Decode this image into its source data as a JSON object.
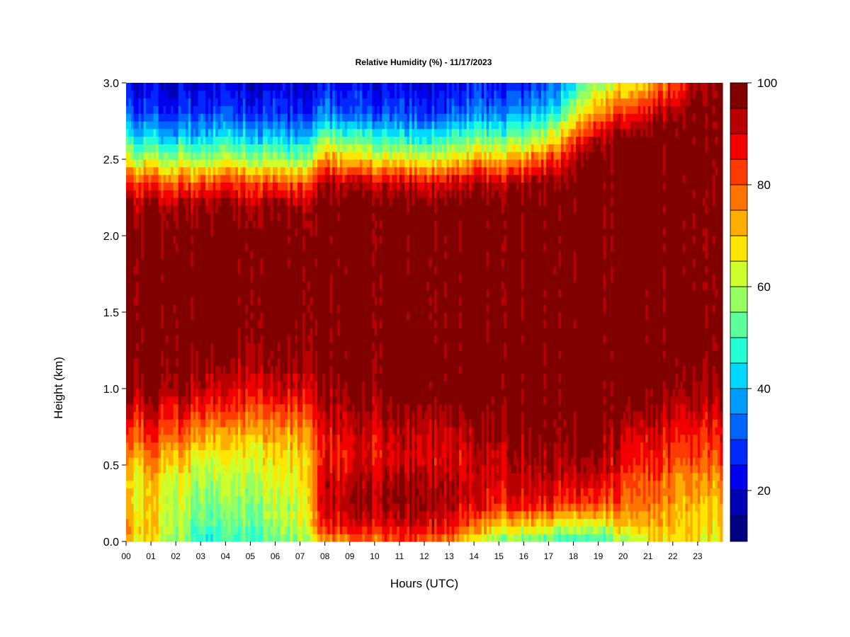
{
  "chart_data": {
    "type": "heatmap",
    "title": "Relative Humidity (%) - 11/17/2023",
    "xlabel": "Hours (UTC)",
    "ylabel": "Height (km)",
    "x_ticks": [
      "00",
      "01",
      "02",
      "03",
      "04",
      "05",
      "06",
      "07",
      "08",
      "09",
      "10",
      "11",
      "12",
      "13",
      "14",
      "15",
      "16",
      "17",
      "18",
      "19",
      "20",
      "21",
      "22",
      "23"
    ],
    "xlim": [
      0,
      24
    ],
    "y_ticks": [
      "0.0",
      "0.5",
      "1.0",
      "1.5",
      "2.0",
      "2.5",
      "3.0"
    ],
    "ylim": [
      0,
      3
    ],
    "colorbar": {
      "ticks": [
        "20",
        "40",
        "60",
        "80",
        "100"
      ],
      "range": [
        10,
        100
      ],
      "levels": [
        10,
        15,
        20,
        25,
        30,
        35,
        40,
        45,
        50,
        55,
        60,
        65,
        70,
        75,
        80,
        85,
        90,
        95,
        100
      ],
      "colors": [
        "#000080",
        "#0000b4",
        "#0000ee",
        "#0028ff",
        "#0064ff",
        "#009cff",
        "#00d8ff",
        "#24ffd4",
        "#5cff9c",
        "#96ff62",
        "#ccff2c",
        "#ffe600",
        "#ffae00",
        "#ff7400",
        "#ff3a00",
        "#f20000",
        "#b80000",
        "#800000"
      ]
    },
    "profiles": [
      {
        "hour": 0,
        "rh": [
          70,
          72,
          68,
          65,
          72,
          80,
          88,
          96,
          100,
          100,
          100,
          100,
          100,
          96,
          85,
          62,
          45,
          30,
          22
        ]
      },
      {
        "hour": 1,
        "rh": [
          66,
          68,
          68,
          70,
          76,
          84,
          90,
          96,
          100,
          100,
          100,
          100,
          100,
          96,
          82,
          60,
          42,
          28,
          20
        ]
      },
      {
        "hour": 2,
        "rh": [
          60,
          62,
          62,
          64,
          72,
          82,
          88,
          96,
          100,
          100,
          100,
          100,
          100,
          95,
          80,
          60,
          42,
          28,
          20
        ]
      },
      {
        "hour": 3,
        "rh": [
          45,
          50,
          55,
          58,
          64,
          74,
          84,
          92,
          98,
          100,
          100,
          100,
          100,
          95,
          80,
          58,
          40,
          28,
          20
        ]
      },
      {
        "hour": 4,
        "rh": [
          48,
          52,
          56,
          60,
          64,
          72,
          82,
          90,
          96,
          100,
          100,
          100,
          100,
          96,
          84,
          62,
          44,
          30,
          22
        ]
      },
      {
        "hour": 5,
        "rh": [
          50,
          55,
          58,
          62,
          66,
          72,
          82,
          90,
          96,
          98,
          100,
          100,
          100,
          95,
          82,
          60,
          42,
          28,
          20
        ]
      },
      {
        "hour": 6,
        "rh": [
          52,
          56,
          60,
          62,
          66,
          72,
          80,
          90,
          96,
          98,
          100,
          100,
          100,
          95,
          80,
          58,
          40,
          28,
          20
        ]
      },
      {
        "hour": 7,
        "rh": [
          56,
          60,
          62,
          65,
          68,
          74,
          82,
          90,
          96,
          98,
          100,
          100,
          100,
          94,
          78,
          55,
          38,
          26,
          20
        ]
      },
      {
        "hour": 8,
        "rh": [
          72,
          86,
          92,
          90,
          86,
          88,
          92,
          96,
          100,
          100,
          100,
          100,
          100,
          100,
          94,
          75,
          55,
          35,
          25
        ]
      },
      {
        "hour": 9,
        "rh": [
          76,
          88,
          94,
          92,
          88,
          90,
          94,
          98,
          100,
          100,
          100,
          100,
          100,
          100,
          92,
          70,
          50,
          32,
          22
        ]
      },
      {
        "hour": 10,
        "rh": [
          78,
          88,
          94,
          93,
          88,
          90,
          94,
          98,
          100,
          100,
          100,
          100,
          100,
          100,
          90,
          68,
          48,
          30,
          22
        ]
      },
      {
        "hour": 11,
        "rh": [
          80,
          90,
          96,
          95,
          90,
          92,
          96,
          100,
          100,
          100,
          100,
          100,
          100,
          100,
          90,
          66,
          45,
          30,
          22
        ]
      },
      {
        "hour": 12,
        "rh": [
          80,
          90,
          96,
          96,
          90,
          92,
          96,
          100,
          100,
          100,
          100,
          100,
          100,
          100,
          88,
          64,
          44,
          28,
          20
        ]
      },
      {
        "hour": 13,
        "rh": [
          76,
          88,
          94,
          94,
          90,
          92,
          96,
          100,
          100,
          100,
          100,
          100,
          100,
          100,
          90,
          68,
          48,
          32,
          22
        ]
      },
      {
        "hour": 14,
        "rh": [
          62,
          76,
          88,
          90,
          90,
          94,
          98,
          100,
          100,
          100,
          100,
          100,
          100,
          100,
          92,
          72,
          52,
          35,
          24
        ]
      },
      {
        "hour": 15,
        "rh": [
          55,
          70,
          86,
          90,
          92,
          96,
          98,
          100,
          100,
          100,
          100,
          100,
          100,
          100,
          92,
          72,
          52,
          35,
          24
        ]
      },
      {
        "hour": 16,
        "rh": [
          52,
          68,
          86,
          92,
          94,
          96,
          100,
          100,
          100,
          100,
          100,
          100,
          100,
          100,
          94,
          74,
          55,
          38,
          26
        ]
      },
      {
        "hour": 17,
        "rh": [
          50,
          66,
          86,
          92,
          95,
          98,
          100,
          100,
          100,
          100,
          100,
          100,
          100,
          100,
          96,
          82,
          62,
          42,
          28
        ]
      },
      {
        "hour": 18,
        "rh": [
          48,
          64,
          84,
          92,
          96,
          98,
          100,
          100,
          100,
          100,
          100,
          100,
          100,
          100,
          100,
          94,
          80,
          62,
          44
        ]
      },
      {
        "hour": 19,
        "rh": [
          48,
          62,
          82,
          90,
          96,
          98,
          100,
          100,
          100,
          100,
          100,
          100,
          100,
          100,
          100,
          100,
          92,
          76,
          58
        ]
      },
      {
        "hour": 20,
        "rh": [
          58,
          70,
          80,
          84,
          88,
          92,
          98,
          100,
          100,
          100,
          100,
          100,
          100,
          100,
          100,
          100,
          98,
          84,
          66
        ]
      },
      {
        "hour": 21,
        "rh": [
          66,
          72,
          78,
          82,
          86,
          90,
          96,
          100,
          100,
          100,
          100,
          100,
          100,
          100,
          100,
          100,
          100,
          90,
          72
        ]
      },
      {
        "hour": 22,
        "rh": [
          70,
          72,
          75,
          78,
          84,
          88,
          92,
          98,
          100,
          100,
          100,
          100,
          100,
          100,
          100,
          100,
          100,
          96,
          80
        ]
      },
      {
        "hour": 23,
        "rh": [
          68,
          70,
          72,
          76,
          82,
          86,
          92,
          96,
          100,
          100,
          100,
          100,
          100,
          100,
          100,
          100,
          100,
          100,
          96
        ]
      },
      {
        "hour": 24,
        "rh": [
          66,
          70,
          72,
          76,
          82,
          86,
          92,
          96,
          100,
          100,
          100,
          100,
          100,
          100,
          100,
          100,
          100,
          100,
          100
        ]
      }
    ],
    "profile_heights_km": [
      0,
      0.1,
      0.25,
      0.4,
      0.55,
      0.7,
      0.85,
      1.0,
      1.2,
      1.4,
      1.6,
      1.8,
      2.0,
      2.2,
      2.35,
      2.5,
      2.65,
      2.8,
      3.0
    ]
  }
}
